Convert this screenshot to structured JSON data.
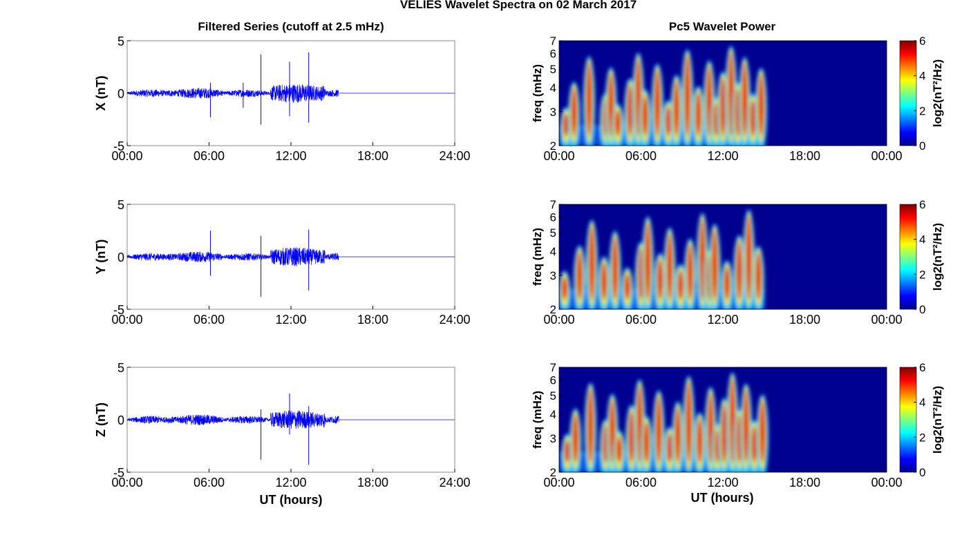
{
  "figure": {
    "title": "VELIES Wavelet Spectra on 02 March 2017",
    "left_title": "Filtered Series (cutoff at 2.5 mHz)",
    "right_title": "Pc5 Wavelet Power",
    "xlabel": "UT (hours)"
  },
  "chart_data": [
    {
      "type": "line",
      "component": "X",
      "ylabel": "X (nT)",
      "ylim": [
        -5,
        5
      ],
      "yticks": [
        "5",
        "0",
        "-5"
      ],
      "xlim": [
        0,
        24
      ],
      "xticks": [
        "00:00",
        "06:00",
        "12:00",
        "18:00",
        "24:00"
      ],
      "data_end_hour": 15.5,
      "spikes": [
        {
          "x": 6.1,
          "ymin": -2.3,
          "ymax": 1.0
        },
        {
          "x": 8.5,
          "ymin": -1.4,
          "ymax": 1.0
        },
        {
          "x": 9.8,
          "ymin": -3.0,
          "ymax": 3.7
        },
        {
          "x": 11.9,
          "ymin": -2.2,
          "ymax": 3.0
        },
        {
          "x": 13.3,
          "ymin": -2.8,
          "ymax": 3.9
        }
      ],
      "color": "#0000ff"
    },
    {
      "type": "line",
      "component": "Y",
      "ylabel": "Y (nT)",
      "ylim": [
        -5,
        5
      ],
      "yticks": [
        "5",
        "0",
        "-5"
      ],
      "xlim": [
        0,
        24
      ],
      "xticks": [
        "00:00",
        "06:00",
        "12:00",
        "18:00",
        "24:00"
      ],
      "data_end_hour": 15.5,
      "spikes": [
        {
          "x": 6.1,
          "ymin": -1.8,
          "ymax": 2.5
        },
        {
          "x": 9.8,
          "ymin": -3.8,
          "ymax": 2.0
        },
        {
          "x": 13.3,
          "ymin": -3.2,
          "ymax": 2.6
        }
      ],
      "color": "#0000ff"
    },
    {
      "type": "line",
      "component": "Z",
      "ylabel": "Z (nT)",
      "ylim": [
        -5,
        5
      ],
      "yticks": [
        "5",
        "0",
        "-5"
      ],
      "xlim": [
        0,
        24
      ],
      "xticks": [
        "00:00",
        "06:00",
        "12:00",
        "18:00",
        "24:00"
      ],
      "data_end_hour": 15.5,
      "spikes": [
        {
          "x": 9.8,
          "ymin": -3.8,
          "ymax": 1.0
        },
        {
          "x": 11.9,
          "ymin": -1.4,
          "ymax": 2.5
        },
        {
          "x": 13.3,
          "ymin": -4.3,
          "ymax": 1.3
        }
      ],
      "color": "#0000ff"
    },
    {
      "type": "heatmap",
      "component": "X",
      "ylabel": "freq (mHz)",
      "ylim": [
        2,
        7
      ],
      "yscale": "log",
      "yticks": [
        "2",
        "3",
        "4",
        "5",
        "6",
        "7"
      ],
      "xticks": [
        "00:00",
        "06:00",
        "12:00",
        "18:00",
        "00:00"
      ],
      "data_end_hour": 15.1,
      "colorbar": {
        "label": "log2(nT²/Hz)",
        "ticks": [
          "0",
          "2",
          "4",
          "6"
        ],
        "range": [
          0,
          6
        ]
      },
      "peak_hours": [
        0.5,
        1.1,
        2.2,
        3.4,
        3.8,
        4.3,
        5.2,
        5.8,
        6.3,
        7.2,
        8.0,
        8.6,
        9.4,
        10.2,
        11.0,
        11.5,
        12.0,
        12.6,
        13.1,
        13.6,
        14.2,
        14.8
      ]
    },
    {
      "type": "heatmap",
      "component": "Y",
      "ylabel": "freq (mHz)",
      "ylim": [
        2,
        7
      ],
      "yscale": "log",
      "yticks": [
        "2",
        "3",
        "4",
        "5",
        "6",
        "7"
      ],
      "xticks": [
        "00:00",
        "06:00",
        "12:00",
        "18:00",
        "00:00"
      ],
      "data_end_hour": 15.1,
      "colorbar": {
        "label": "log2(nT²/Hz)",
        "ticks": [
          "0",
          "2",
          "4",
          "6"
        ],
        "range": [
          0,
          6
        ]
      },
      "peak_hours": [
        0.4,
        1.5,
        2.4,
        3.3,
        4.1,
        5.0,
        6.0,
        6.5,
        7.4,
        8.1,
        8.9,
        9.6,
        10.5,
        11.0,
        11.4,
        12.3,
        13.2,
        13.9,
        14.6
      ]
    },
    {
      "type": "heatmap",
      "component": "Z",
      "ylabel": "freq (mHz)",
      "ylim": [
        2,
        7
      ],
      "yscale": "log",
      "yticks": [
        "2",
        "3",
        "4",
        "5",
        "6",
        "7"
      ],
      "xticks": [
        "00:00",
        "06:00",
        "12:00",
        "18:00",
        "00:00"
      ],
      "data_end_hour": 15.1,
      "colorbar": {
        "label": "log2(nT²/Hz)",
        "ticks": [
          "0",
          "2",
          "4",
          "6"
        ],
        "range": [
          0,
          6
        ]
      },
      "peak_hours": [
        0.6,
        1.2,
        2.3,
        3.4,
        3.9,
        4.4,
        5.3,
        5.9,
        6.4,
        7.3,
        8.1,
        8.7,
        9.5,
        10.3,
        11.1,
        11.6,
        12.1,
        12.7,
        13.2,
        13.7,
        14.3,
        14.9
      ]
    }
  ]
}
